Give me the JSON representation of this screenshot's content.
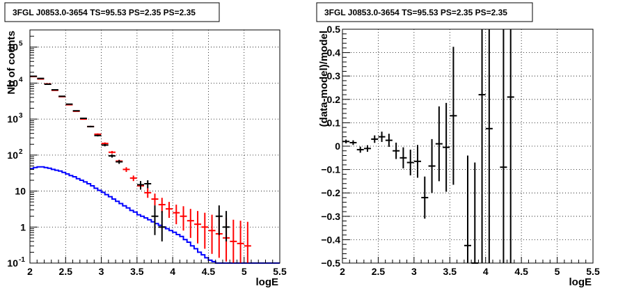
{
  "chart_data": [
    {
      "type": "line",
      "title": "3FGL J0853.0-3654 TS=95.53 PS=2.35 PS=2.35",
      "xlabel": "logE",
      "ylabel": "Nb of counts",
      "xlim": [
        2,
        5.5
      ],
      "ylim": [
        0.1,
        300000
      ],
      "y_scale": "log",
      "grid": true,
      "x_ticks": [
        "2",
        "2.5",
        "3",
        "3.5",
        "4",
        "4.5",
        "5",
        "5.5"
      ],
      "y_ticks": [
        {
          "v": 0.1,
          "label": "10",
          "sup": "-1"
        },
        {
          "v": 1,
          "label": "1",
          "sup": ""
        },
        {
          "v": 10,
          "label": "10",
          "sup": ""
        },
        {
          "v": 100,
          "label": "10",
          "sup": "2"
        },
        {
          "v": 1000,
          "label": "10",
          "sup": "3"
        },
        {
          "v": 10000,
          "label": "10",
          "sup": "4"
        },
        {
          "v": 100000,
          "label": "10",
          "sup": "5"
        }
      ],
      "series": [
        {
          "color": "#000000",
          "kind": "data_points",
          "points": [
            {
              "x": 2.05,
              "y": 15500,
              "lo": 15200,
              "hi": 15800
            },
            {
              "x": 2.15,
              "y": 13500,
              "lo": 13200,
              "hi": 13800
            },
            {
              "x": 2.25,
              "y": 9300,
              "lo": 9100,
              "hi": 9500
            },
            {
              "x": 2.35,
              "y": 6500,
              "lo": 6350,
              "hi": 6650
            },
            {
              "x": 2.45,
              "y": 4300,
              "lo": 4200,
              "hi": 4400
            },
            {
              "x": 2.55,
              "y": 2600,
              "lo": 2540,
              "hi": 2660
            },
            {
              "x": 2.65,
              "y": 1700,
              "lo": 1650,
              "hi": 1750
            },
            {
              "x": 2.75,
              "y": 1050,
              "lo": 1010,
              "hi": 1090
            },
            {
              "x": 2.85,
              "y": 620,
              "lo": 590,
              "hi": 650
            },
            {
              "x": 2.95,
              "y": 350,
              "lo": 330,
              "hi": 370
            },
            {
              "x": 3.05,
              "y": 190,
              "lo": 175,
              "hi": 205
            },
            {
              "x": 3.15,
              "y": 95,
              "lo": 85,
              "hi": 105
            },
            {
              "x": 3.25,
              "y": 65,
              "lo": 57,
              "hi": 73
            },
            {
              "x": 3.55,
              "y": 15,
              "lo": 11,
              "hi": 19
            },
            {
              "x": 3.65,
              "y": 16,
              "lo": 12,
              "hi": 20
            },
            {
              "x": 3.75,
              "y": 2,
              "lo": 0.6,
              "hi": 4
            },
            {
              "x": 3.85,
              "y": 1,
              "lo": 0.4,
              "hi": 2.8
            },
            {
              "x": 4.65,
              "y": 2,
              "lo": 0.6,
              "hi": 4
            },
            {
              "x": 4.75,
              "y": 1,
              "lo": 0.4,
              "hi": 2.8
            }
          ]
        },
        {
          "color": "#ff0000",
          "kind": "model_points",
          "points": [
            {
              "x": 2.05,
              "y": 15200,
              "lo": 15100,
              "hi": 15300
            },
            {
              "x": 2.15,
              "y": 13000,
              "lo": 12900,
              "hi": 13100
            },
            {
              "x": 2.25,
              "y": 9500,
              "lo": 9400,
              "hi": 9600
            },
            {
              "x": 2.35,
              "y": 6300,
              "lo": 6250,
              "hi": 6350
            },
            {
              "x": 2.45,
              "y": 4200,
              "lo": 4150,
              "hi": 4250
            },
            {
              "x": 2.55,
              "y": 2500,
              "lo": 2470,
              "hi": 2530
            },
            {
              "x": 2.65,
              "y": 1650,
              "lo": 1620,
              "hi": 1680
            },
            {
              "x": 2.75,
              "y": 1000,
              "lo": 980,
              "hi": 1020
            },
            {
              "x": 2.85,
              "y": 620,
              "lo": 600,
              "hi": 640
            },
            {
              "x": 2.95,
              "y": 380,
              "lo": 360,
              "hi": 400
            },
            {
              "x": 3.05,
              "y": 210,
              "lo": 195,
              "hi": 225
            },
            {
              "x": 3.15,
              "y": 120,
              "lo": 110,
              "hi": 130
            },
            {
              "x": 3.25,
              "y": 68,
              "lo": 62,
              "hi": 74
            },
            {
              "x": 3.35,
              "y": 40,
              "lo": 34,
              "hi": 46
            },
            {
              "x": 3.45,
              "y": 23,
              "lo": 19,
              "hi": 27
            },
            {
              "x": 3.55,
              "y": 14,
              "lo": 11,
              "hi": 17
            },
            {
              "x": 3.65,
              "y": 9,
              "lo": 6.5,
              "hi": 12
            },
            {
              "x": 3.75,
              "y": 6,
              "lo": 4,
              "hi": 8.5
            },
            {
              "x": 3.85,
              "y": 4.2,
              "lo": 2.5,
              "hi": 6.5
            },
            {
              "x": 3.95,
              "y": 3.2,
              "lo": 1.8,
              "hi": 5
            },
            {
              "x": 4.05,
              "y": 2.5,
              "lo": 1.2,
              "hi": 4.2
            },
            {
              "x": 4.15,
              "y": 2.0,
              "lo": 0.8,
              "hi": 3.8
            },
            {
              "x": 4.25,
              "y": 1.5,
              "lo": 0.5,
              "hi": 3.2
            },
            {
              "x": 4.35,
              "y": 1.2,
              "lo": 0.35,
              "hi": 2.8
            },
            {
              "x": 4.45,
              "y": 1.0,
              "lo": 0.25,
              "hi": 2.5
            },
            {
              "x": 4.55,
              "y": 0.8,
              "lo": 0.18,
              "hi": 2.2
            },
            {
              "x": 4.65,
              "y": 0.65,
              "lo": 0.14,
              "hi": 2.0
            },
            {
              "x": 4.75,
              "y": 0.5,
              "lo": 0.11,
              "hi": 1.8
            },
            {
              "x": 4.85,
              "y": 0.4,
              "lo": 0.1,
              "hi": 1.6
            },
            {
              "x": 4.95,
              "y": 0.35,
              "lo": 0.1,
              "hi": 1.5
            },
            {
              "x": 5.05,
              "y": 0.3,
              "lo": 0.1,
              "hi": 1.4
            }
          ]
        },
        {
          "color": "#0000ff",
          "kind": "histogram",
          "bin_width": 0.05,
          "x_start": 2.0,
          "values": [
            42,
            45,
            47,
            47,
            45,
            43,
            40,
            38,
            36,
            33,
            30,
            27,
            25,
            22,
            20,
            18,
            16,
            14,
            12,
            10.5,
            9.2,
            8,
            7,
            6,
            5.2,
            4.5,
            3.9,
            3.4,
            2.9,
            2.6,
            2.2,
            2.0,
            1.8,
            1.6,
            1.4,
            1.25,
            1.12,
            1.0,
            0.9,
            0.8,
            0.72,
            0.62,
            0.55,
            0.45,
            0.38,
            0.3,
            0.25,
            0.2,
            0.17,
            0.14,
            0.12,
            0.11,
            0.1,
            0.1,
            0.1,
            0.1,
            0.1,
            0.1,
            0.1,
            0.1,
            0.1,
            0.1,
            0.1,
            0.1,
            0.1,
            0.1,
            0.1,
            0.1,
            0.1,
            0.1
          ]
        }
      ]
    },
    {
      "type": "scatter",
      "title": "3FGL J0853.0-3654 TS=95.53 PS=2.35 PS=2.35",
      "xlabel": "logE",
      "ylabel": "(data-model)/model",
      "xlim": [
        2,
        5.5
      ],
      "ylim": [
        -0.5,
        0.5
      ],
      "grid": true,
      "x_ticks": [
        "2",
        "2.5",
        "3",
        "3.5",
        "4",
        "4.5",
        "5",
        "5.5"
      ],
      "y_ticks": [
        "−0.5",
        "−0.4",
        "−0.3",
        "−0.2",
        "−0.1",
        "0",
        "0.1",
        "0.2",
        "0.3",
        "0.4",
        "0.5"
      ],
      "y_tick_values": [
        -0.5,
        -0.4,
        -0.3,
        -0.2,
        -0.1,
        0,
        0.1,
        0.2,
        0.3,
        0.4,
        0.5
      ],
      "series": [
        {
          "color": "#000000",
          "points": [
            {
              "x": 2.05,
              "y": 0.02,
              "lo": 0.012,
              "hi": 0.028
            },
            {
              "x": 2.15,
              "y": 0.015,
              "lo": 0.005,
              "hi": 0.025
            },
            {
              "x": 2.25,
              "y": -0.015,
              "lo": -0.028,
              "hi": -0.002
            },
            {
              "x": 2.35,
              "y": -0.01,
              "lo": -0.024,
              "hi": 0.004
            },
            {
              "x": 2.45,
              "y": 0.03,
              "lo": 0.014,
              "hi": 0.046
            },
            {
              "x": 2.55,
              "y": 0.04,
              "lo": 0.018,
              "hi": 0.062
            },
            {
              "x": 2.65,
              "y": 0.025,
              "lo": -0.003,
              "hi": 0.053
            },
            {
              "x": 2.75,
              "y": -0.02,
              "lo": -0.055,
              "hi": 0.015
            },
            {
              "x": 2.85,
              "y": -0.05,
              "lo": -0.095,
              "hi": -0.005
            },
            {
              "x": 2.95,
              "y": -0.07,
              "lo": -0.125,
              "hi": -0.015
            },
            {
              "x": 3.05,
              "y": -0.065,
              "lo": -0.135,
              "hi": 0.005
            },
            {
              "x": 3.15,
              "y": -0.22,
              "lo": -0.31,
              "hi": -0.13
            },
            {
              "x": 3.25,
              "y": -0.085,
              "lo": -0.2,
              "hi": 0.03
            },
            {
              "x": 3.35,
              "y": 0.01,
              "lo": -0.15,
              "hi": 0.17
            },
            {
              "x": 3.45,
              "y": -0.005,
              "lo": -0.195,
              "hi": 0.185
            },
            {
              "x": 3.55,
              "y": 0.13,
              "lo": -0.165,
              "hi": 0.425
            },
            {
              "x": 3.75,
              "y": -0.425,
              "lo": -0.5,
              "hi": -0.04
            },
            {
              "x": 3.85,
              "y": -0.5,
              "lo": -0.5,
              "hi": -0.07
            },
            {
              "x": 3.95,
              "y": 0.22,
              "lo": -0.5,
              "hi": 0.5
            },
            {
              "x": 4.05,
              "y": 0.075,
              "lo": -0.5,
              "hi": 0.5
            },
            {
              "x": 4.25,
              "y": -0.09,
              "lo": -0.5,
              "hi": 0.5
            },
            {
              "x": 4.35,
              "y": 0.21,
              "lo": -0.5,
              "hi": 0.5
            }
          ]
        }
      ]
    }
  ]
}
